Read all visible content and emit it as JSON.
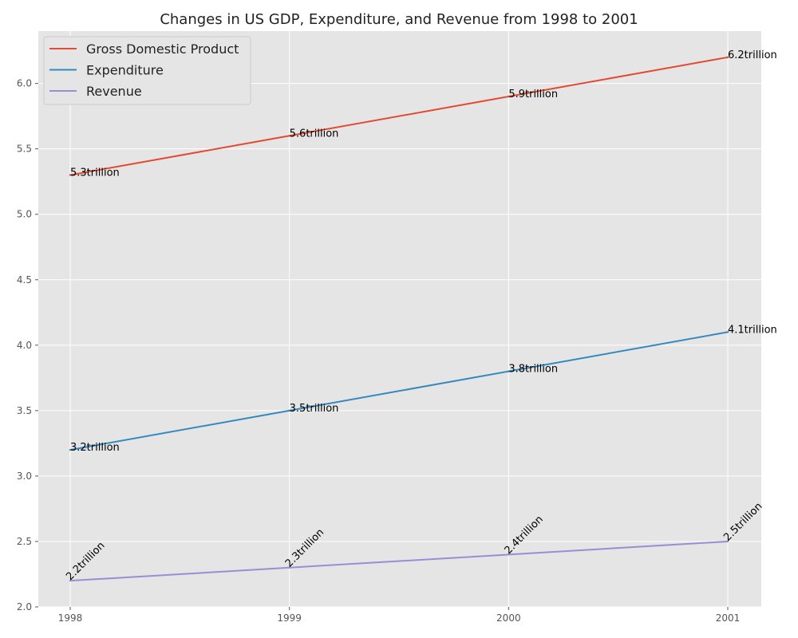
{
  "chart_data": {
    "type": "line",
    "title": "Changes in US GDP, Expenditure, and Revenue from 1998 to 2001",
    "xlabel": "",
    "ylabel": "",
    "categories": [
      "1998",
      "1999",
      "2000",
      "2001"
    ],
    "ylim": [
      2.0,
      6.4
    ],
    "yticks": [
      "2.0",
      "2.5",
      "3.0",
      "3.5",
      "4.0",
      "4.5",
      "5.0",
      "5.5",
      "6.0"
    ],
    "grid": true,
    "legend_position": "top-left",
    "series": [
      {
        "name": "Gross Domestic Product",
        "color": "#E24A33",
        "values": [
          5.3,
          5.6,
          5.9,
          6.2
        ],
        "labels": [
          "5.3trillion",
          "5.6trillion",
          "5.9trillion",
          "6.2trillion"
        ],
        "label_rotation": 0
      },
      {
        "name": "Expenditure",
        "color": "#348ABD",
        "values": [
          3.2,
          3.5,
          3.8,
          4.1
        ],
        "labels": [
          "3.2trillion",
          "3.5trillion",
          "3.8trillion",
          "4.1trillion"
        ],
        "label_rotation": 0
      },
      {
        "name": "Revenue",
        "color": "#988ED5",
        "values": [
          2.2,
          2.3,
          2.4,
          2.5
        ],
        "labels": [
          "2.2trillion",
          "2.3trillion",
          "2.4trillion",
          "2.5trillion"
        ],
        "label_rotation": -45
      }
    ]
  }
}
